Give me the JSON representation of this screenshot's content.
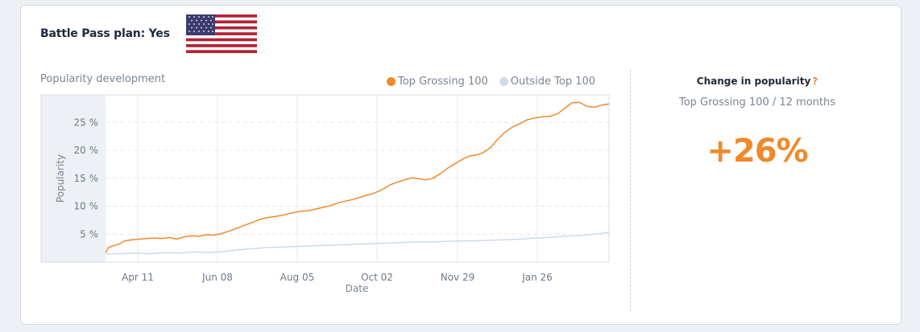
{
  "header": {
    "title": "Battle Pass plan: Yes",
    "flag_icon": "us-flag-icon"
  },
  "chart_header": {
    "title": "Popularity development"
  },
  "legend": [
    {
      "label": "Top Grossing 100",
      "color": "#f0892a"
    },
    {
      "label": "Outside Top 100",
      "color": "#cfdbe6"
    }
  ],
  "right_panel": {
    "title": "Change in popularity",
    "help": "?",
    "subtitle": "Top Grossing 100 / 12 months",
    "value": "+26%"
  },
  "chart_data": {
    "type": "line",
    "xlabel": "Date",
    "ylabel": "Popularity",
    "x_ticks": [
      "Apr 11",
      "Jun 08",
      "Aug 05",
      "Oct 02",
      "Nov 29",
      "Jan 26"
    ],
    "y_ticks": [
      "5 %",
      "10 %",
      "15 %",
      "20 %",
      "25 %"
    ],
    "ylim": [
      0,
      30
    ],
    "grid": true,
    "legend_position": "top-right",
    "series": [
      {
        "name": "Top Grossing 100",
        "color": "#f0892a",
        "points": [
          [
            0,
            1.7
          ],
          [
            2,
            2.6
          ],
          [
            5,
            2.9
          ],
          [
            9,
            3.2
          ],
          [
            13,
            3.8
          ],
          [
            18,
            4.0
          ],
          [
            23,
            4.1
          ],
          [
            28,
            4.2
          ],
          [
            33,
            4.3
          ],
          [
            38,
            4.2
          ],
          [
            43,
            4.4
          ],
          [
            48,
            4.1
          ],
          [
            53,
            4.5
          ],
          [
            58,
            4.7
          ],
          [
            63,
            4.6
          ],
          [
            68,
            4.9
          ],
          [
            73,
            4.8
          ],
          [
            78,
            5.1
          ],
          [
            83,
            5.5
          ],
          [
            88,
            6.0
          ],
          [
            93,
            6.5
          ],
          [
            98,
            7.0
          ],
          [
            103,
            7.5
          ],
          [
            108,
            7.9
          ],
          [
            113,
            8.1
          ],
          [
            118,
            8.3
          ],
          [
            123,
            8.6
          ],
          [
            128,
            8.9
          ],
          [
            132,
            9.1
          ],
          [
            137,
            9.2
          ],
          [
            142,
            9.5
          ],
          [
            147,
            9.8
          ],
          [
            152,
            10.1
          ],
          [
            157,
            10.6
          ],
          [
            162,
            10.9
          ],
          [
            167,
            11.2
          ],
          [
            172,
            11.6
          ],
          [
            177,
            12.0
          ],
          [
            182,
            12.4
          ],
          [
            187,
            13.0
          ],
          [
            192,
            13.8
          ],
          [
            197,
            14.3
          ],
          [
            202,
            14.7
          ],
          [
            207,
            15.1
          ],
          [
            212,
            14.9
          ],
          [
            216,
            14.7
          ],
          [
            221,
            15.0
          ],
          [
            226,
            15.8
          ],
          [
            231,
            16.8
          ],
          [
            236,
            17.6
          ],
          [
            241,
            18.4
          ],
          [
            246,
            19.0
          ],
          [
            251,
            19.2
          ],
          [
            255,
            19.6
          ],
          [
            260,
            20.5
          ],
          [
            265,
            22.0
          ],
          [
            270,
            23.3
          ],
          [
            275,
            24.2
          ],
          [
            280,
            24.8
          ],
          [
            285,
            25.5
          ],
          [
            290,
            25.8
          ],
          [
            295,
            26.0
          ],
          [
            300,
            26.1
          ],
          [
            305,
            26.5
          ],
          [
            310,
            27.5
          ],
          [
            315,
            28.5
          ],
          [
            320,
            28.6
          ],
          [
            325,
            27.9
          ],
          [
            330,
            27.7
          ],
          [
            335,
            28.1
          ],
          [
            340,
            28.3
          ]
        ]
      },
      {
        "name": "Outside Top 100",
        "color": "#cfdbe6",
        "points": [
          [
            0,
            1.5
          ],
          [
            10,
            1.5
          ],
          [
            20,
            1.6
          ],
          [
            30,
            1.5
          ],
          [
            40,
            1.7
          ],
          [
            50,
            1.6
          ],
          [
            60,
            1.8
          ],
          [
            70,
            1.7
          ],
          [
            80,
            1.9
          ],
          [
            90,
            2.2
          ],
          [
            100,
            2.4
          ],
          [
            110,
            2.6
          ],
          [
            120,
            2.7
          ],
          [
            130,
            2.8
          ],
          [
            140,
            2.9
          ],
          [
            150,
            3.0
          ],
          [
            160,
            3.1
          ],
          [
            170,
            3.2
          ],
          [
            180,
            3.3
          ],
          [
            190,
            3.4
          ],
          [
            200,
            3.5
          ],
          [
            210,
            3.6
          ],
          [
            220,
            3.6
          ],
          [
            230,
            3.7
          ],
          [
            240,
            3.8
          ],
          [
            250,
            3.8
          ],
          [
            260,
            3.9
          ],
          [
            270,
            4.0
          ],
          [
            280,
            4.1
          ],
          [
            290,
            4.3
          ],
          [
            300,
            4.4
          ],
          [
            310,
            4.6
          ],
          [
            320,
            4.7
          ],
          [
            330,
            5.0
          ],
          [
            340,
            5.3
          ]
        ]
      }
    ]
  }
}
